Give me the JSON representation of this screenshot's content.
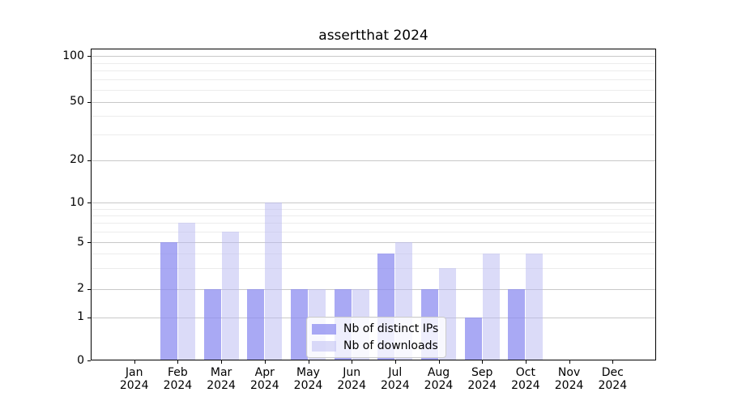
{
  "title": "assertthat 2024",
  "chart_data": {
    "type": "bar",
    "title": "assertthat 2024",
    "categories": [
      "Jan",
      "Feb",
      "Mar",
      "Apr",
      "May",
      "Jun",
      "Jul",
      "Aug",
      "Sep",
      "Oct",
      "Nov",
      "Dec"
    ],
    "x_tick_year": "2024",
    "series": [
      {
        "name": "Nb of distinct IPs",
        "color": "#a9a9f3",
        "fill": "rgba(140,140,240,0.75)",
        "values": [
          0,
          5,
          2,
          2,
          2,
          2,
          4,
          2,
          1,
          2,
          0,
          0
        ]
      },
      {
        "name": "Nb of downloads",
        "color": "#dbdbf9",
        "fill": "rgba(184,184,242,0.5)",
        "values": [
          0,
          7,
          6,
          10,
          2,
          2,
          5,
          3,
          4,
          4,
          0,
          0
        ]
      }
    ],
    "y_axis": {
      "scale": "log-like",
      "major_ticks": [
        0,
        1,
        2,
        5,
        10,
        20,
        50,
        100
      ],
      "minor_ticks": [
        3,
        4,
        6,
        7,
        8,
        9,
        30,
        40,
        60,
        70,
        80,
        90
      ],
      "ylim": [
        0,
        100
      ]
    },
    "xlabel": "",
    "ylabel": "",
    "grid": true,
    "legend_position": "lower center"
  },
  "colors": {
    "background": "#ffffff",
    "grid_major": "#c8c8c8",
    "grid_minor": "#ececec",
    "spine": "#000000",
    "text": "#000000",
    "legend_background": "rgba(255,255,255,0.8)",
    "legend_border": "#cccccc"
  }
}
